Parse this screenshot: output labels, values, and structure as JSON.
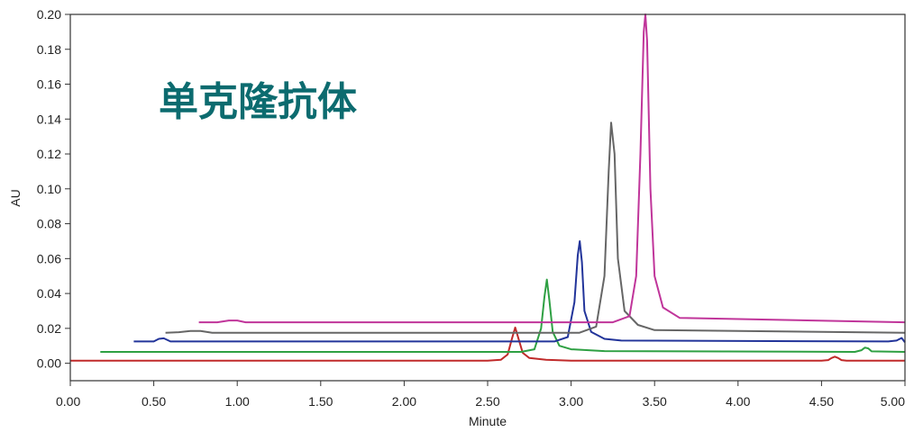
{
  "chart_data": {
    "type": "line",
    "title": "",
    "xlabel": "Minute",
    "ylabel": "AU",
    "xlim": [
      0.0,
      5.0
    ],
    "ylim": [
      -0.01,
      0.2
    ],
    "x_ticks": [
      "0.00",
      "0.50",
      "1.00",
      "1.50",
      "2.00",
      "2.50",
      "3.00",
      "3.50",
      "4.00",
      "4.50",
      "5.00"
    ],
    "y_ticks": [
      "0.00",
      "0.02",
      "0.04",
      "0.06",
      "0.08",
      "0.10",
      "0.12",
      "0.14",
      "0.16",
      "0.18",
      "0.20"
    ],
    "grid": false,
    "legend": "none",
    "annotation": {
      "text": "单克隆抗体",
      "color": "#0c6b6f"
    },
    "series": [
      {
        "color": "#c02a2a",
        "x": [
          0.0,
          2.5,
          2.58,
          2.62,
          2.645,
          2.665,
          2.685,
          2.71,
          2.75,
          2.85,
          3.0,
          4.5,
          4.54,
          4.56,
          4.58,
          4.6,
          4.62,
          4.65,
          5.0
        ],
        "y": [
          0.0015,
          0.0015,
          0.002,
          0.005,
          0.014,
          0.0205,
          0.014,
          0.006,
          0.003,
          0.002,
          0.0015,
          0.0015,
          0.0018,
          0.003,
          0.0038,
          0.003,
          0.0018,
          0.0015,
          0.0015
        ]
      },
      {
        "color": "#2ea043",
        "x": [
          0.18,
          2.7,
          2.78,
          2.82,
          2.84,
          2.855,
          2.87,
          2.89,
          2.93,
          3.0,
          3.2,
          4.7,
          4.74,
          4.76,
          4.78,
          4.8,
          5.0
        ],
        "y": [
          0.0065,
          0.0065,
          0.008,
          0.02,
          0.038,
          0.048,
          0.036,
          0.018,
          0.01,
          0.008,
          0.007,
          0.0065,
          0.0075,
          0.009,
          0.0085,
          0.0068,
          0.0065
        ]
      },
      {
        "color": "#22349a",
        "x": [
          0.38,
          0.5,
          0.53,
          0.56,
          0.6,
          2.9,
          2.98,
          3.02,
          3.04,
          3.052,
          3.065,
          3.08,
          3.12,
          3.2,
          3.3,
          4.9,
          4.95,
          4.98,
          5.0
        ],
        "y": [
          0.0125,
          0.0125,
          0.014,
          0.0143,
          0.0125,
          0.0125,
          0.015,
          0.035,
          0.062,
          0.07,
          0.058,
          0.03,
          0.018,
          0.014,
          0.013,
          0.0125,
          0.013,
          0.0145,
          0.012
        ]
      },
      {
        "color": "#666666",
        "x": [
          0.57,
          0.65,
          0.72,
          0.78,
          0.85,
          3.05,
          3.15,
          3.2,
          3.225,
          3.24,
          3.26,
          3.28,
          3.32,
          3.4,
          3.5,
          5.0
        ],
        "y": [
          0.0175,
          0.0178,
          0.0185,
          0.0185,
          0.0175,
          0.0175,
          0.021,
          0.05,
          0.11,
          0.138,
          0.12,
          0.06,
          0.03,
          0.022,
          0.019,
          0.0175
        ]
      },
      {
        "color": "#c0359a",
        "x": [
          0.77,
          0.88,
          0.95,
          1.0,
          1.05,
          3.25,
          3.35,
          3.39,
          3.415,
          3.435,
          3.445,
          3.455,
          3.475,
          3.5,
          3.55,
          3.65,
          5.0
        ],
        "y": [
          0.0235,
          0.0235,
          0.0245,
          0.0245,
          0.0235,
          0.0235,
          0.027,
          0.05,
          0.12,
          0.19,
          0.2,
          0.185,
          0.1,
          0.05,
          0.032,
          0.026,
          0.0235
        ]
      }
    ]
  }
}
